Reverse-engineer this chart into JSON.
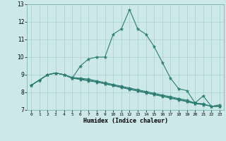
{
  "title": "",
  "xlabel": "Humidex (Indice chaleur)",
  "ylabel": "",
  "bg_color": "#cce8e8",
  "line_color": "#2e7d72",
  "grid_color": "#aacfcf",
  "xlim": [
    -0.5,
    23.5
  ],
  "ylim": [
    7,
    13
  ],
  "yticks": [
    7,
    8,
    9,
    10,
    11,
    12,
    13
  ],
  "xticks": [
    0,
    1,
    2,
    3,
    4,
    5,
    6,
    7,
    8,
    9,
    10,
    11,
    12,
    13,
    14,
    15,
    16,
    17,
    18,
    19,
    20,
    21,
    22,
    23
  ],
  "lines": [
    {
      "x": [
        0,
        1,
        2,
        3,
        4,
        5,
        6,
        7,
        8,
        9,
        10,
        11,
        12,
        13,
        14,
        15,
        16,
        17,
        18,
        19,
        20,
        21,
        22,
        23
      ],
      "y": [
        8.4,
        8.7,
        9.0,
        9.1,
        9.0,
        8.8,
        9.5,
        9.9,
        10.0,
        10.0,
        11.3,
        11.6,
        12.7,
        11.6,
        11.3,
        10.6,
        9.7,
        8.8,
        8.2,
        8.1,
        7.4,
        7.8,
        7.2,
        7.3
      ]
    },
    {
      "x": [
        0,
        1,
        2,
        3,
        4,
        5,
        6,
        7,
        8,
        9,
        10,
        11,
        12,
        13,
        14,
        15,
        16,
        17,
        18,
        19,
        20,
        21,
        22,
        23
      ],
      "y": [
        8.4,
        8.7,
        9.0,
        9.1,
        9.0,
        8.85,
        8.8,
        8.75,
        8.65,
        8.55,
        8.45,
        8.35,
        8.25,
        8.15,
        8.05,
        7.95,
        7.85,
        7.75,
        7.65,
        7.55,
        7.4,
        7.35,
        7.2,
        7.2
      ]
    },
    {
      "x": [
        0,
        1,
        2,
        3,
        4,
        5,
        6,
        7,
        8,
        9,
        10,
        11,
        12,
        13,
        14,
        15,
        16,
        17,
        18,
        19,
        20,
        21,
        22,
        23
      ],
      "y": [
        8.4,
        8.7,
        9.0,
        9.1,
        9.0,
        8.82,
        8.76,
        8.7,
        8.6,
        8.5,
        8.4,
        8.3,
        8.2,
        8.1,
        8.0,
        7.9,
        7.8,
        7.7,
        7.6,
        7.5,
        7.38,
        7.32,
        7.22,
        7.22
      ]
    },
    {
      "x": [
        0,
        1,
        2,
        3,
        4,
        5,
        6,
        7,
        8,
        9,
        10,
        11,
        12,
        13,
        14,
        15,
        16,
        17,
        18,
        19,
        20,
        21,
        22,
        23
      ],
      "y": [
        8.4,
        8.7,
        9.0,
        9.1,
        9.0,
        8.8,
        8.73,
        8.65,
        8.58,
        8.48,
        8.38,
        8.27,
        8.17,
        8.07,
        7.97,
        7.87,
        7.77,
        7.67,
        7.57,
        7.47,
        7.36,
        7.3,
        7.21,
        7.21
      ]
    }
  ]
}
